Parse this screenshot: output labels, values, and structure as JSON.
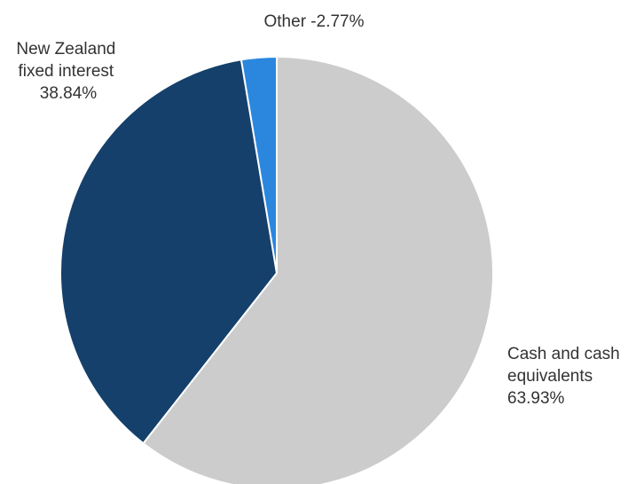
{
  "chart_data": {
    "type": "pie",
    "title": "",
    "slices": [
      {
        "label": "Cash and cash equivalents",
        "value": 63.93,
        "color": "#cccccc",
        "text_lines": [
          "Cash and cash",
          "equivalents",
          "63.93%"
        ]
      },
      {
        "label": "New Zealand fixed interest",
        "value": 38.84,
        "color": "#15406b",
        "text_lines": [
          "New Zealand",
          "fixed interest",
          "38.84%"
        ]
      },
      {
        "label": "Other",
        "value": -2.77,
        "color": "#2b87de",
        "text_lines": [
          "Other -2.77%"
        ]
      }
    ]
  }
}
